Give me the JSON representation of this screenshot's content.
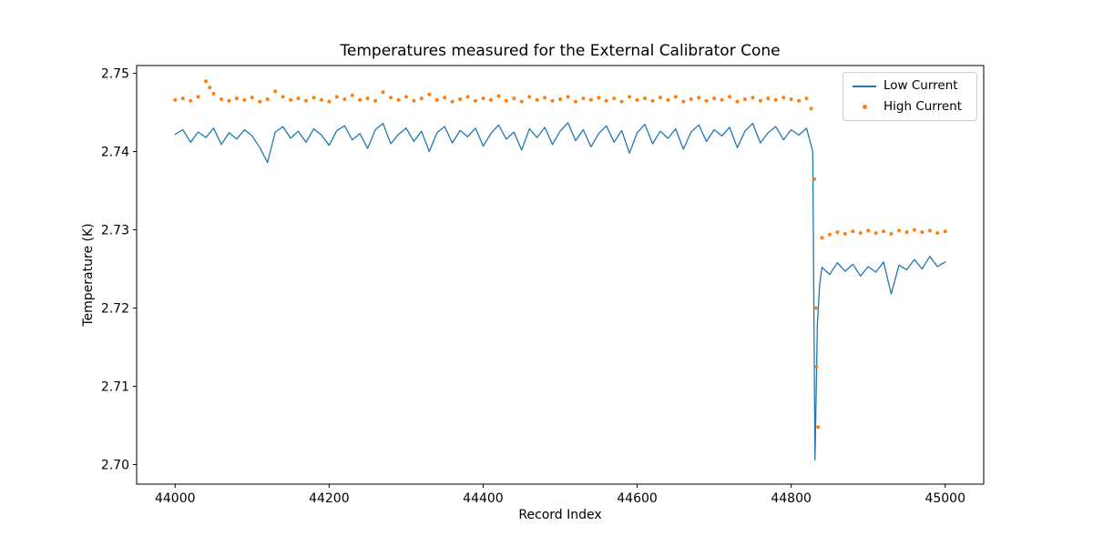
{
  "figure": {
    "background": "#ffffff"
  },
  "chart_data": {
    "type": "mixed",
    "title": "Temperatures measured for the External Calibrator Cone",
    "xlabel": "Record Index",
    "ylabel": "Temperature (K)",
    "xlim": [
      43950,
      45050
    ],
    "ylim": [
      2.6975,
      2.751
    ],
    "xticks": [
      44000,
      44200,
      44400,
      44600,
      44800,
      45000
    ],
    "yticks": [
      2.7,
      2.71,
      2.72,
      2.73,
      2.74,
      2.75
    ],
    "ytick_decimals": 2,
    "grid": false,
    "legend": {
      "position": "upper right",
      "entries": [
        {
          "label": "Low Current",
          "marker": "line",
          "color": "#1f77b4"
        },
        {
          "label": "High Current",
          "marker": "dot",
          "color": "#ff7f0e"
        }
      ]
    },
    "series": [
      {
        "name": "Low Current",
        "type": "line",
        "color": "#1f77b4",
        "points": [
          [
            44000,
            2.7422
          ],
          [
            44010,
            2.7428
          ],
          [
            44020,
            2.7412
          ],
          [
            44030,
            2.7425
          ],
          [
            44040,
            2.7418
          ],
          [
            44050,
            2.743
          ],
          [
            44060,
            2.7409
          ],
          [
            44070,
            2.7424
          ],
          [
            44080,
            2.7416
          ],
          [
            44090,
            2.7428
          ],
          [
            44100,
            2.742
          ],
          [
            44110,
            2.7405
          ],
          [
            44120,
            2.7386
          ],
          [
            44130,
            2.7425
          ],
          [
            44140,
            2.7432
          ],
          [
            44150,
            2.7417
          ],
          [
            44160,
            2.7426
          ],
          [
            44170,
            2.7412
          ],
          [
            44180,
            2.7429
          ],
          [
            44190,
            2.7421
          ],
          [
            44200,
            2.7408
          ],
          [
            44210,
            2.7427
          ],
          [
            44220,
            2.7433
          ],
          [
            44230,
            2.7415
          ],
          [
            44240,
            2.7423
          ],
          [
            44250,
            2.7404
          ],
          [
            44260,
            2.7428
          ],
          [
            44270,
            2.7436
          ],
          [
            44280,
            2.741
          ],
          [
            44290,
            2.7422
          ],
          [
            44300,
            2.743
          ],
          [
            44310,
            2.7413
          ],
          [
            44320,
            2.7426
          ],
          [
            44330,
            2.74
          ],
          [
            44340,
            2.7424
          ],
          [
            44350,
            2.7432
          ],
          [
            44360,
            2.7411
          ],
          [
            44370,
            2.7427
          ],
          [
            44380,
            2.7419
          ],
          [
            44390,
            2.743
          ],
          [
            44400,
            2.7407
          ],
          [
            44410,
            2.7423
          ],
          [
            44420,
            2.7434
          ],
          [
            44430,
            2.7416
          ],
          [
            44440,
            2.7425
          ],
          [
            44450,
            2.7402
          ],
          [
            44460,
            2.7429
          ],
          [
            44470,
            2.7418
          ],
          [
            44480,
            2.7431
          ],
          [
            44490,
            2.7409
          ],
          [
            44500,
            2.7426
          ],
          [
            44510,
            2.7437
          ],
          [
            44520,
            2.7414
          ],
          [
            44530,
            2.7428
          ],
          [
            44540,
            2.7406
          ],
          [
            44550,
            2.7423
          ],
          [
            44560,
            2.7433
          ],
          [
            44570,
            2.7412
          ],
          [
            44580,
            2.7427
          ],
          [
            44590,
            2.7398
          ],
          [
            44600,
            2.7424
          ],
          [
            44610,
            2.7435
          ],
          [
            44620,
            2.741
          ],
          [
            44630,
            2.7426
          ],
          [
            44640,
            2.7417
          ],
          [
            44650,
            2.7429
          ],
          [
            44660,
            2.7403
          ],
          [
            44670,
            2.7425
          ],
          [
            44680,
            2.7434
          ],
          [
            44690,
            2.7413
          ],
          [
            44700,
            2.7428
          ],
          [
            44710,
            2.742
          ],
          [
            44720,
            2.7431
          ],
          [
            44730,
            2.7405
          ],
          [
            44740,
            2.7426
          ],
          [
            44750,
            2.7436
          ],
          [
            44760,
            2.7411
          ],
          [
            44770,
            2.7424
          ],
          [
            44780,
            2.7432
          ],
          [
            44790,
            2.7415
          ],
          [
            44800,
            2.7428
          ],
          [
            44810,
            2.7421
          ],
          [
            44820,
            2.743
          ],
          [
            44828,
            2.74
          ],
          [
            44831,
            2.7006
          ],
          [
            44834,
            2.718
          ],
          [
            44837,
            2.723
          ],
          [
            44840,
            2.7252
          ],
          [
            44850,
            2.7243
          ],
          [
            44860,
            2.7258
          ],
          [
            44870,
            2.7247
          ],
          [
            44880,
            2.7256
          ],
          [
            44890,
            2.7241
          ],
          [
            44900,
            2.7253
          ],
          [
            44910,
            2.7246
          ],
          [
            44920,
            2.7259
          ],
          [
            44930,
            2.7218
          ],
          [
            44940,
            2.7255
          ],
          [
            44950,
            2.7249
          ],
          [
            44960,
            2.7262
          ],
          [
            44970,
            2.725
          ],
          [
            44980,
            2.7266
          ],
          [
            44990,
            2.7253
          ],
          [
            45000,
            2.7259
          ]
        ]
      },
      {
        "name": "High Current",
        "type": "scatter",
        "color": "#ff7f0e",
        "marker_size": 2,
        "points": [
          [
            44000,
            2.7466
          ],
          [
            44010,
            2.7468
          ],
          [
            44020,
            2.7465
          ],
          [
            44030,
            2.747
          ],
          [
            44040,
            2.749
          ],
          [
            44045,
            2.7482
          ],
          [
            44050,
            2.7474
          ],
          [
            44060,
            2.7467
          ],
          [
            44070,
            2.7465
          ],
          [
            44080,
            2.7468
          ],
          [
            44090,
            2.7466
          ],
          [
            44100,
            2.7469
          ],
          [
            44110,
            2.7464
          ],
          [
            44120,
            2.7467
          ],
          [
            44130,
            2.7477
          ],
          [
            44140,
            2.747
          ],
          [
            44150,
            2.7466
          ],
          [
            44160,
            2.7468
          ],
          [
            44170,
            2.7465
          ],
          [
            44180,
            2.7469
          ],
          [
            44190,
            2.7466
          ],
          [
            44200,
            2.7464
          ],
          [
            44210,
            2.747
          ],
          [
            44220,
            2.7467
          ],
          [
            44230,
            2.7472
          ],
          [
            44240,
            2.7466
          ],
          [
            44250,
            2.7468
          ],
          [
            44260,
            2.7465
          ],
          [
            44270,
            2.7476
          ],
          [
            44280,
            2.7469
          ],
          [
            44290,
            2.7466
          ],
          [
            44300,
            2.747
          ],
          [
            44310,
            2.7465
          ],
          [
            44320,
            2.7468
          ],
          [
            44330,
            2.7473
          ],
          [
            44340,
            2.7466
          ],
          [
            44350,
            2.7469
          ],
          [
            44360,
            2.7464
          ],
          [
            44370,
            2.7467
          ],
          [
            44380,
            2.747
          ],
          [
            44390,
            2.7465
          ],
          [
            44400,
            2.7468
          ],
          [
            44410,
            2.7466
          ],
          [
            44420,
            2.7471
          ],
          [
            44430,
            2.7465
          ],
          [
            44440,
            2.7468
          ],
          [
            44450,
            2.7464
          ],
          [
            44460,
            2.747
          ],
          [
            44470,
            2.7466
          ],
          [
            44480,
            2.7469
          ],
          [
            44490,
            2.7465
          ],
          [
            44500,
            2.7467
          ],
          [
            44510,
            2.747
          ],
          [
            44520,
            2.7464
          ],
          [
            44530,
            2.7468
          ],
          [
            44540,
            2.7466
          ],
          [
            44550,
            2.7469
          ],
          [
            44560,
            2.7465
          ],
          [
            44570,
            2.7468
          ],
          [
            44580,
            2.7464
          ],
          [
            44590,
            2.747
          ],
          [
            44600,
            2.7466
          ],
          [
            44610,
            2.7468
          ],
          [
            44620,
            2.7465
          ],
          [
            44630,
            2.7469
          ],
          [
            44640,
            2.7466
          ],
          [
            44650,
            2.747
          ],
          [
            44660,
            2.7464
          ],
          [
            44670,
            2.7467
          ],
          [
            44680,
            2.7469
          ],
          [
            44690,
            2.7465
          ],
          [
            44700,
            2.7468
          ],
          [
            44710,
            2.7466
          ],
          [
            44720,
            2.747
          ],
          [
            44730,
            2.7464
          ],
          [
            44740,
            2.7467
          ],
          [
            44750,
            2.7469
          ],
          [
            44760,
            2.7465
          ],
          [
            44770,
            2.7468
          ],
          [
            44780,
            2.7466
          ],
          [
            44790,
            2.7469
          ],
          [
            44800,
            2.7467
          ],
          [
            44810,
            2.7465
          ],
          [
            44820,
            2.7468
          ],
          [
            44826,
            2.7455
          ],
          [
            44830,
            2.7365
          ],
          [
            44832,
            2.72
          ],
          [
            44833,
            2.7125
          ],
          [
            44835,
            2.7048
          ],
          [
            44840,
            2.729
          ],
          [
            44850,
            2.7294
          ],
          [
            44860,
            2.7297
          ],
          [
            44870,
            2.7295
          ],
          [
            44880,
            2.7298
          ],
          [
            44890,
            2.7296
          ],
          [
            44900,
            2.7299
          ],
          [
            44910,
            2.7296
          ],
          [
            44920,
            2.7298
          ],
          [
            44930,
            2.7295
          ],
          [
            44940,
            2.7299
          ],
          [
            44950,
            2.7297
          ],
          [
            44960,
            2.73
          ],
          [
            44970,
            2.7297
          ],
          [
            44980,
            2.7299
          ],
          [
            44990,
            2.7296
          ],
          [
            45000,
            2.7298
          ]
        ]
      }
    ]
  }
}
